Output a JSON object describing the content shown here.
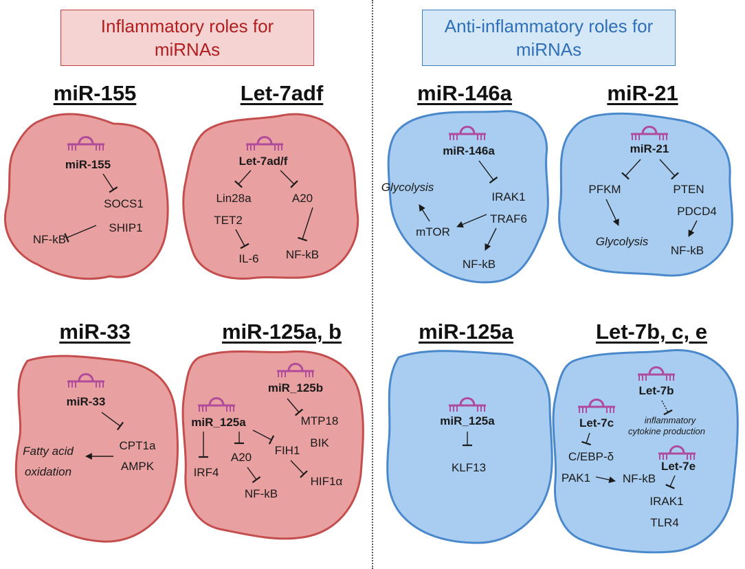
{
  "headers": {
    "inflammatory": [
      "Inflammatory roles for",
      "miRNAs"
    ],
    "anti_inflammatory": [
      "Anti-inflammatory roles for",
      "miRNAs"
    ]
  },
  "colors": {
    "red_cell_fill": "#e9a0a0",
    "red_cell_stroke": "#c44d4d",
    "blue_cell_fill": "#a9cdf0",
    "blue_cell_stroke": "#4a88cc",
    "mirna_icon": "#b04a9a"
  },
  "panels": {
    "mir155": {
      "title": "miR-155",
      "mirna": "miR-155",
      "targets": [
        "SOCS1",
        "SHIP1"
      ],
      "downstream": "NF-kB"
    },
    "let7adf": {
      "title": "Let-7adf",
      "mirna": "Let-7ad/f",
      "left_targets": [
        "Lin28a",
        "TET2"
      ],
      "left_downstream": "IL-6",
      "right_target": "A20",
      "right_downstream": "NF-kB"
    },
    "mir146a": {
      "title": "miR-146a",
      "mirna": "miR-146a",
      "targets": [
        "IRAK1",
        "TRAF6"
      ],
      "mtor": "mTOR",
      "glycolysis": "Glycolysis",
      "downstream": "NF-kB"
    },
    "mir21": {
      "title": "miR-21",
      "mirna": "miR-21",
      "left_target": "PFKM",
      "left_downstream": "Glycolysis",
      "right_targets": [
        "PTEN",
        "PDCD4"
      ],
      "right_downstream": "NF-kB"
    },
    "mir33": {
      "title": "miR-33",
      "mirna": "miR-33",
      "targets": [
        "CPT1a",
        "AMPK"
      ],
      "outcome": [
        "Fatty acid",
        "oxidation"
      ]
    },
    "mir125ab": {
      "title": "miR-125a, b",
      "mirna_b": "miR_125b",
      "targets_b": [
        "MTP18",
        "BIK"
      ],
      "mirna_a": "miR_125a",
      "irf4": "IRF4",
      "a20": "A20",
      "a20_downstream": "NF-kB",
      "fih1": "FIH1",
      "fih1_downstream": "HIF1α"
    },
    "mir125a": {
      "title": "miR-125a",
      "mirna": "miR_125a",
      "target": "KLF13"
    },
    "let7bce": {
      "title": "Let-7b, c, e",
      "mirna_b": "Let-7b",
      "b_effect": [
        "inflammatory",
        "cytokine production"
      ],
      "mirna_c": "Let-7c",
      "c_targets": [
        "C/EBP-δ",
        "PAK1"
      ],
      "c_downstream": "NF-kB",
      "mirna_e": "Let-7e",
      "e_targets": [
        "IRAK1",
        "TLR4"
      ]
    }
  }
}
